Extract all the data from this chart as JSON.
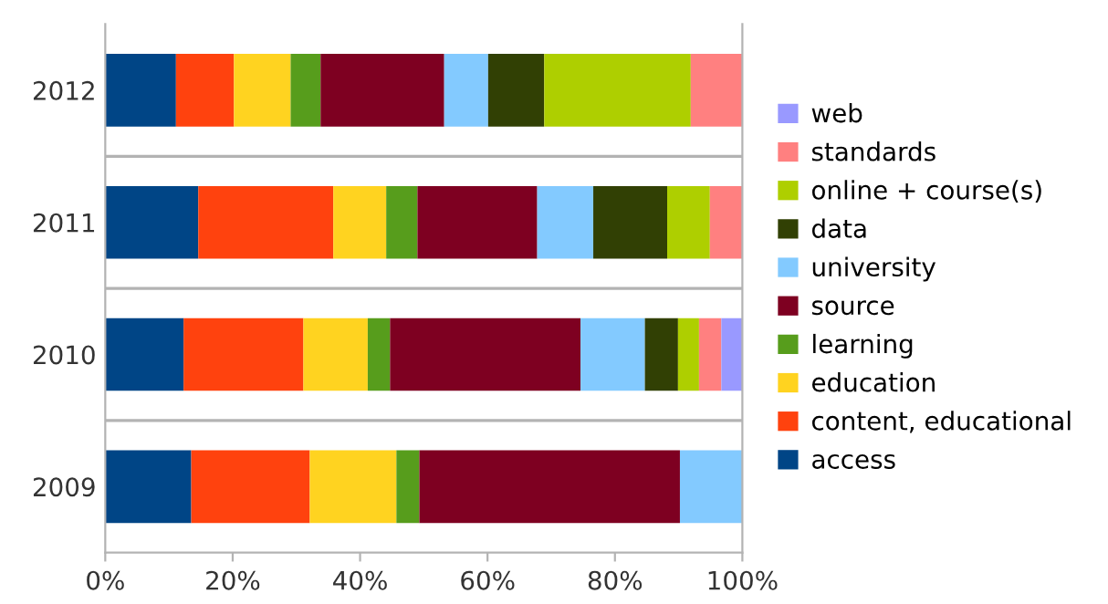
{
  "chart_data": {
    "type": "bar",
    "orientation": "horizontal",
    "stacked": true,
    "categories": [
      "2012",
      "2011",
      "2010",
      "2009"
    ],
    "series": [
      {
        "name": "access",
        "color": "#004586",
        "values": [
          11.1,
          14.6,
          12.3,
          13.5
        ]
      },
      {
        "name": "content, educational",
        "color": "#ff420e",
        "values": [
          9.1,
          21.2,
          18.8,
          18.6
        ]
      },
      {
        "name": "education",
        "color": "#ffd320",
        "values": [
          8.9,
          8.3,
          10.1,
          13.6
        ]
      },
      {
        "name": "learning",
        "color": "#579d1c",
        "values": [
          4.7,
          4.9,
          3.5,
          3.6
        ]
      },
      {
        "name": "source",
        "color": "#7e0021",
        "values": [
          19.4,
          18.8,
          29.9,
          40.9
        ]
      },
      {
        "name": "university",
        "color": "#83caff",
        "values": [
          6.9,
          8.8,
          10.1,
          9.8
        ]
      },
      {
        "name": "data",
        "color": "#314004",
        "values": [
          8.8,
          11.6,
          5.2,
          0
        ]
      },
      {
        "name": "online + course(s)",
        "color": "#aecf00",
        "values": [
          23.0,
          6.7,
          3.3,
          0
        ]
      },
      {
        "name": "standards",
        "color": "#ff8080",
        "values": [
          8.1,
          5.1,
          3.5,
          0
        ]
      },
      {
        "name": "web",
        "color": "#9999ff",
        "values": [
          0,
          0,
          3.3,
          0
        ]
      }
    ],
    "xlim": [
      0,
      100
    ],
    "xticks": [
      {
        "value": 0,
        "label": "0%"
      },
      {
        "value": 20,
        "label": "20%"
      },
      {
        "value": 40,
        "label": "40%"
      },
      {
        "value": 60,
        "label": "60%"
      },
      {
        "value": 80,
        "label": "80%"
      },
      {
        "value": 100,
        "label": "100%"
      }
    ],
    "grid": "y",
    "legend": "right"
  }
}
